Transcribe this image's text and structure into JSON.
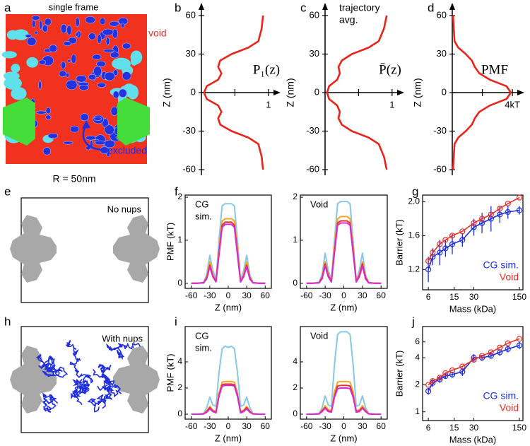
{
  "panel_a": {
    "label": "a",
    "title": "single frame",
    "void_label": "void",
    "excluded_label": "excluded",
    "scale_label": "R = 50nm"
  },
  "panel_e": {
    "label": "e",
    "text": "No nups"
  },
  "panel_h": {
    "label": "h",
    "text": "With nups"
  },
  "chart_data": [
    {
      "label": "b",
      "type": "line",
      "orientation": "vertical",
      "annotation": "P₁(z)",
      "ylabel": "Z (nm)",
      "color": "#e8241c",
      "z": [
        -60,
        -50,
        -40,
        -35,
        -30,
        -25,
        -20,
        -15,
        -10,
        -5,
        0,
        5,
        10,
        15,
        20,
        25,
        30,
        35,
        40,
        50,
        60
      ],
      "values": [
        0.92,
        0.9,
        0.85,
        0.7,
        0.45,
        0.28,
        0.25,
        0.3,
        0.25,
        0.08,
        0.04,
        0.08,
        0.25,
        0.3,
        0.25,
        0.28,
        0.45,
        0.7,
        0.85,
        0.9,
        0.92
      ],
      "xlim": [
        0,
        1.16
      ],
      "xticks": [
        1
      ],
      "minor_xticks": [
        0.5
      ],
      "ylim": [
        -60,
        60
      ],
      "yticks": [
        -60,
        -30,
        0,
        30,
        60
      ]
    },
    {
      "label": "c",
      "type": "line",
      "orientation": "vertical",
      "annotation": "P̄(z)",
      "note_lines": [
        "trajectory",
        "avg."
      ],
      "ylabel": "Z (nm)",
      "color": "#e8241c",
      "z": [
        -60,
        -50,
        -40,
        -35,
        -30,
        -25,
        -20,
        -15,
        -10,
        -5,
        0,
        5,
        10,
        15,
        20,
        25,
        30,
        35,
        40,
        50,
        60
      ],
      "values": [
        0.92,
        0.88,
        0.8,
        0.65,
        0.4,
        0.25,
        0.2,
        0.22,
        0.18,
        0.06,
        0.03,
        0.06,
        0.18,
        0.22,
        0.2,
        0.25,
        0.4,
        0.65,
        0.8,
        0.88,
        0.92
      ],
      "xlim": [
        0,
        1.16
      ],
      "xticks": [
        1
      ],
      "minor_xticks": [
        0.5
      ],
      "ylim": [
        -60,
        60
      ],
      "yticks": [
        -60,
        -30,
        0,
        30,
        60
      ]
    },
    {
      "label": "d",
      "type": "line",
      "orientation": "vertical",
      "annotation": "PMF",
      "ylabel": "Z (nm)",
      "color": "#e8241c",
      "z": [
        -60,
        -50,
        -40,
        -35,
        -30,
        -25,
        -20,
        -15,
        -10,
        -5,
        0,
        5,
        10,
        15,
        20,
        25,
        30,
        35,
        40,
        50,
        60
      ],
      "values": [
        0.05,
        0.1,
        0.15,
        0.4,
        0.9,
        1.3,
        1.5,
        1.8,
        2.5,
        3.6,
        3.9,
        3.6,
        2.5,
        1.8,
        1.5,
        1.3,
        0.9,
        0.4,
        0.15,
        0.1,
        0.05
      ],
      "xlim": [
        0,
        4.7
      ],
      "xticks": [
        {
          "value": 4,
          "label": "4kT"
        }
      ],
      "minor_xticks": [
        2
      ],
      "ylim": [
        -60,
        60
      ],
      "yticks": [
        -60,
        -30,
        0,
        30,
        60
      ]
    },
    {
      "label": "f",
      "type": "line",
      "title_lines": [
        "CG",
        "sim."
      ],
      "xlabel": "Z (nm)",
      "ylabel": "PMF (kT)",
      "x": [
        -60,
        -50,
        -40,
        -35,
        -30,
        -25,
        -20,
        -15,
        -10,
        -5,
        0,
        5,
        10,
        15,
        20,
        25,
        30,
        35,
        40,
        50,
        60
      ],
      "xlim": [
        -70,
        70
      ],
      "xticks": [
        -60,
        -30,
        0,
        30,
        60
      ],
      "ylim": [
        -0.12,
        2.05
      ],
      "yticks": [
        0,
        1,
        2
      ],
      "series": [
        {
          "color": "#86c8e6",
          "values": [
            0,
            0,
            0.02,
            0.2,
            0.65,
            0.3,
            0.08,
            1.0,
            1.8,
            1.85,
            1.85,
            1.85,
            1.8,
            1.0,
            0.08,
            0.3,
            0.65,
            0.2,
            0.02,
            0,
            0
          ]
        },
        {
          "color": "#f5a623",
          "values": [
            0,
            0,
            0.01,
            0.15,
            0.5,
            0.2,
            0.05,
            0.8,
            1.45,
            1.5,
            1.5,
            1.5,
            1.45,
            0.8,
            0.05,
            0.2,
            0.5,
            0.15,
            0.01,
            0,
            0
          ]
        },
        {
          "color": "#e8302a",
          "values": [
            0,
            0,
            0.01,
            0.12,
            0.42,
            0.17,
            0.04,
            0.7,
            1.35,
            1.42,
            1.42,
            1.42,
            1.35,
            0.7,
            0.04,
            0.17,
            0.42,
            0.12,
            0.01,
            0,
            0
          ]
        },
        {
          "color": "#d62ad6",
          "values": [
            0,
            0,
            0.01,
            0.1,
            0.38,
            0.15,
            0.03,
            0.65,
            1.3,
            1.37,
            1.37,
            1.37,
            1.3,
            0.65,
            0.03,
            0.15,
            0.38,
            0.1,
            0.01,
            0,
            0
          ]
        }
      ]
    },
    {
      "type": "line",
      "title_lines": [
        "Void"
      ],
      "xlabel": "Z (nm)",
      "x": [
        -60,
        -50,
        -40,
        -35,
        -30,
        -25,
        -20,
        -15,
        -10,
        -5,
        0,
        5,
        10,
        15,
        20,
        25,
        30,
        35,
        40,
        50,
        60
      ],
      "xlim": [
        -70,
        70
      ],
      "xticks": [
        -60,
        -30,
        0,
        30,
        60
      ],
      "ylim": [
        -0.12,
        2.05
      ],
      "yticks": [
        0,
        1,
        2
      ],
      "series": [
        {
          "color": "#86c8e6",
          "values": [
            0,
            0,
            0.02,
            0.2,
            0.7,
            0.3,
            0.08,
            1.0,
            1.85,
            1.9,
            1.9,
            1.9,
            1.85,
            1.0,
            0.08,
            0.3,
            0.7,
            0.2,
            0.02,
            0,
            0
          ]
        },
        {
          "color": "#f5a623",
          "values": [
            0,
            0,
            0.01,
            0.15,
            0.5,
            0.2,
            0.05,
            0.85,
            1.5,
            1.55,
            1.55,
            1.55,
            1.5,
            0.85,
            0.05,
            0.2,
            0.5,
            0.15,
            0.01,
            0,
            0
          ]
        },
        {
          "color": "#e8302a",
          "values": [
            0,
            0,
            0.01,
            0.13,
            0.45,
            0.18,
            0.04,
            0.75,
            1.4,
            1.45,
            1.45,
            1.45,
            1.4,
            0.75,
            0.04,
            0.18,
            0.45,
            0.13,
            0.01,
            0,
            0
          ]
        },
        {
          "color": "#d62ad6",
          "values": [
            0,
            0,
            0.01,
            0.1,
            0.4,
            0.15,
            0.03,
            0.7,
            1.35,
            1.4,
            1.4,
            1.4,
            1.35,
            0.7,
            0.03,
            0.15,
            0.4,
            0.1,
            0.01,
            0,
            0
          ]
        }
      ]
    },
    {
      "label": "g",
      "type": "line",
      "xscale": "log",
      "xlabel": "Mass (kDa)",
      "ylabel": "Barrier (kT)",
      "x": [
        6,
        7,
        9,
        11,
        14,
        20,
        30,
        40,
        55,
        75,
        100,
        150
      ],
      "xlim": [
        4.9,
        170
      ],
      "xticks": [
        6,
        15,
        30,
        150
      ],
      "ylim": [
        0.96,
        2.08
      ],
      "yticks": [
        1.2,
        1.6,
        {
          "value": 2,
          "label": "2.0"
        }
      ],
      "series": [
        {
          "name": "CG sim.",
          "color": "#1f2fe0",
          "values": [
            1.2,
            1.35,
            1.4,
            1.45,
            1.5,
            1.55,
            1.7,
            1.75,
            1.8,
            1.85,
            1.88,
            1.9
          ],
          "errors": [
            0.15,
            0.1,
            0.15,
            0.1,
            0.12,
            0.08,
            0.1,
            0.12,
            0.15,
            0.1,
            0.08,
            0.05
          ]
        },
        {
          "name": "Void",
          "color": "#e8302a",
          "values": [
            1.3,
            1.4,
            1.5,
            1.55,
            1.6,
            1.65,
            1.75,
            1.8,
            1.85,
            1.92,
            1.98,
            2.05
          ]
        }
      ]
    },
    {
      "label": "i",
      "type": "line",
      "title_lines": [
        "CG",
        "sim."
      ],
      "xlabel": "Z (nm)",
      "ylabel": "PMF (kT)",
      "x": [
        -60,
        -50,
        -40,
        -35,
        -30,
        -25,
        -20,
        -15,
        -10,
        -5,
        0,
        5,
        10,
        15,
        20,
        25,
        30,
        35,
        40,
        50,
        60
      ],
      "xlim": [
        -70,
        70
      ],
      "xticks": [
        -60,
        -30,
        0,
        30,
        60
      ],
      "ylim": [
        -0.38,
        6.7
      ],
      "yticks": [
        0,
        2,
        4
      ],
      "series": [
        {
          "color": "#86c8e6",
          "values": [
            0,
            0,
            0.05,
            0.5,
            1.3,
            0.7,
            0.6,
            3.2,
            5.0,
            5.2,
            5.1,
            5.2,
            5.0,
            3.2,
            0.6,
            0.7,
            1.3,
            0.5,
            0.05,
            0,
            0
          ]
        },
        {
          "color": "#f5a623",
          "values": [
            0,
            0,
            0.03,
            0.25,
            0.6,
            0.3,
            0.2,
            1.6,
            2.45,
            2.5,
            2.5,
            2.5,
            2.45,
            1.6,
            0.2,
            0.3,
            0.6,
            0.25,
            0.03,
            0,
            0
          ]
        },
        {
          "color": "#e8302a",
          "values": [
            0,
            0,
            0.02,
            0.2,
            0.5,
            0.25,
            0.15,
            1.45,
            2.25,
            2.3,
            2.3,
            2.3,
            2.25,
            1.45,
            0.15,
            0.25,
            0.5,
            0.2,
            0.02,
            0,
            0
          ]
        },
        {
          "color": "#d62ad6",
          "values": [
            0,
            0,
            0.02,
            0.15,
            0.4,
            0.2,
            0.1,
            1.35,
            2.15,
            2.2,
            2.2,
            2.2,
            2.15,
            1.35,
            0.1,
            0.2,
            0.4,
            0.15,
            0.02,
            0,
            0
          ]
        }
      ]
    },
    {
      "type": "line",
      "title_lines": [
        "Void"
      ],
      "xlabel": "Z (nm)",
      "x": [
        -60,
        -50,
        -40,
        -35,
        -30,
        -25,
        -20,
        -15,
        -10,
        -5,
        0,
        5,
        10,
        15,
        20,
        25,
        30,
        35,
        40,
        50,
        60
      ],
      "xlim": [
        -70,
        70
      ],
      "xticks": [
        -60,
        -30,
        0,
        30,
        60
      ],
      "ylim": [
        -0.38,
        6.7
      ],
      "yticks": [
        0,
        2,
        4
      ],
      "series": [
        {
          "color": "#86c8e6",
          "values": [
            0,
            0,
            0.05,
            0.5,
            1.4,
            0.7,
            0.6,
            3.8,
            6.1,
            6.3,
            6.3,
            6.3,
            6.1,
            3.8,
            0.6,
            0.7,
            1.4,
            0.5,
            0.05,
            0,
            0
          ]
        },
        {
          "color": "#f5a623",
          "values": [
            0,
            0,
            0.03,
            0.3,
            0.65,
            0.35,
            0.25,
            1.7,
            2.45,
            2.5,
            2.5,
            2.5,
            2.45,
            1.7,
            0.25,
            0.35,
            0.65,
            0.3,
            0.03,
            0,
            0
          ]
        },
        {
          "color": "#e8302a",
          "values": [
            0,
            0,
            0.02,
            0.25,
            0.5,
            0.25,
            0.2,
            1.4,
            2.15,
            2.2,
            2.2,
            2.2,
            2.15,
            1.4,
            0.2,
            0.25,
            0.5,
            0.25,
            0.02,
            0,
            0
          ]
        },
        {
          "color": "#d62ad6",
          "values": [
            0,
            0,
            0.02,
            0.2,
            0.45,
            0.2,
            0.15,
            1.3,
            1.95,
            2.0,
            2.0,
            2.0,
            1.95,
            1.3,
            0.15,
            0.2,
            0.45,
            0.2,
            0.02,
            0,
            0
          ]
        }
      ]
    },
    {
      "label": "j",
      "type": "line",
      "xscale": "log",
      "yscale": "log",
      "xlabel": "Mass (kDa)",
      "ylabel": "Barrier (kT)",
      "x": [
        6,
        7,
        9,
        11,
        14,
        20,
        30,
        40,
        55,
        75,
        100,
        150
      ],
      "xlim": [
        4.9,
        170
      ],
      "xticks": [
        6,
        15,
        30,
        150
      ],
      "ylim": [
        0.8,
        8.9
      ],
      "yticks": [
        1,
        2,
        4,
        6
      ],
      "series": [
        {
          "name": "CG sim.",
          "color": "#1f2fe0",
          "values": [
            1.7,
            2.1,
            2.3,
            2.5,
            2.6,
            2.8,
            4.0,
            4.0,
            4.2,
            4.6,
            5.0,
            5.5
          ],
          "errors": [
            0.15,
            0.2,
            0.2,
            0.15,
            0.2,
            0.3,
            0.4,
            0.3,
            0.3,
            0.4,
            0.4,
            0.5
          ]
        },
        {
          "name": "Void",
          "color": "#e8302a",
          "values": [
            2.0,
            2.2,
            2.4,
            2.7,
            2.9,
            3.2,
            3.8,
            4.2,
            4.6,
            5.2,
            5.8,
            6.5
          ]
        }
      ]
    }
  ]
}
